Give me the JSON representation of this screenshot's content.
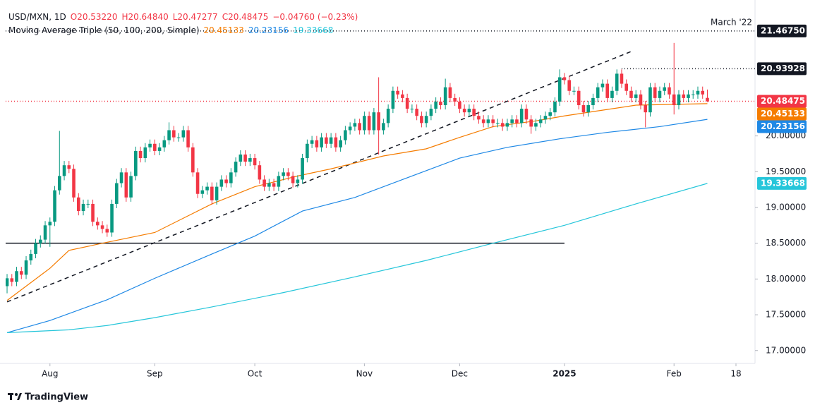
{
  "chart_data": {
    "type": "candlestick",
    "legend": [
      "USD/MXN, 1D",
      "O20.53220",
      "H20.64840",
      "L20.47277",
      "C20.48475",
      "−0.04760 (−0.23%)"
    ],
    "indicator": "Moving Average Triple (50, 100, 200, Simple)",
    "logo": "TradingView",
    "up_color": "#089981",
    "down_color": "#f23645",
    "xlim": [
      -0.3,
      157
    ],
    "ylim": [
      16.82,
      21.9
    ],
    "grid": false,
    "xticks": [
      {
        "value": 9,
        "label": "Aug"
      },
      {
        "value": 31,
        "label": "Sep"
      },
      {
        "value": 52,
        "label": "Oct"
      },
      {
        "value": 75,
        "label": "Nov"
      },
      {
        "value": 95,
        "label": "Dec"
      },
      {
        "value": 117,
        "label": "2025",
        "bold": true
      },
      {
        "value": 140,
        "label": "Feb"
      },
      {
        "value": 153,
        "label": "18"
      }
    ],
    "yticks": [
      {
        "value": 17,
        "label": "17.00000"
      },
      {
        "value": 17.5,
        "label": "17.50000"
      },
      {
        "value": 18,
        "label": "18.00000"
      },
      {
        "value": 18.5,
        "label": "18.50000"
      },
      {
        "value": 19,
        "label": "19.00000"
      },
      {
        "value": 19.5,
        "label": "19.50000"
      },
      {
        "value": 20,
        "label": "20.00000"
      }
    ],
    "open": [
      17.9,
      18.01,
      17.96,
      18.11,
      18.06,
      18.26,
      18.35,
      18.5,
      18.55,
      18.75,
      18.8,
      19.24,
      19.44,
      19.59,
      19.54,
      19.14,
      18.95,
      19.05,
      19.05,
      18.8,
      18.75,
      18.7,
      18.65,
      19.05,
      19.34,
      19.49,
      19.14,
      19.44,
      19.79,
      19.69,
      19.84,
      19.89,
      19.79,
      19.84,
      19.94,
      20.08,
      19.98,
      19.98,
      20.08,
      19.84,
      19.49,
      19.19,
      19.24,
      19.29,
      19.1,
      19.29,
      19.39,
      19.34,
      19.49,
      19.64,
      19.74,
      19.64,
      19.69,
      19.59,
      19.39,
      19.29,
      19.34,
      19.29,
      19.44,
      19.49,
      19.44,
      19.34,
      19.39,
      19.69,
      19.89,
      19.94,
      19.84,
      19.98,
      19.89,
      19.98,
      19.84,
      19.94,
      20.08,
      20.13,
      20.18,
      20.08,
      20.28,
      20.08,
      20.33,
      20.08,
      20.18,
      20.38,
      20.63,
      20.58,
      20.53,
      20.38,
      20.38,
      20.28,
      20.18,
      20.28,
      20.38,
      20.48,
      20.43,
      20.68,
      20.53,
      20.48,
      20.38,
      20.33,
      20.38,
      20.28,
      20.23,
      20.18,
      20.23,
      20.18,
      20.18,
      20.13,
      20.18,
      20.23,
      20.18,
      20.38,
      20.23,
      20.13,
      20.18,
      20.23,
      20.28,
      20.33,
      20.48,
      20.82,
      20.78,
      20.63,
      20.63,
      20.43,
      20.33,
      20.43,
      20.53,
      20.68,
      20.73,
      20.53,
      20.63,
      20.87,
      20.73,
      20.63,
      20.53,
      20.58,
      20.43,
      20.33,
      20.68,
      20.53,
      20.63,
      20.68,
      20.58,
      20.43,
      20.58,
      20.53,
      20.58,
      20.58,
      20.63,
      20.5322
    ],
    "high": [
      18.07,
      18.07,
      18.17,
      18.17,
      18.32,
      18.41,
      18.56,
      18.61,
      18.81,
      18.86,
      19.3,
      20.07,
      19.65,
      19.65,
      19.6,
      19.2,
      19.11,
      19.11,
      19.11,
      18.86,
      18.81,
      18.76,
      19.11,
      19.4,
      19.55,
      19.55,
      19.5,
      19.85,
      19.85,
      19.9,
      19.95,
      19.95,
      19.9,
      20.0,
      20.19,
      20.14,
      20.04,
      20.14,
      20.14,
      19.9,
      19.55,
      19.3,
      19.35,
      19.35,
      19.35,
      19.45,
      19.45,
      19.55,
      19.7,
      19.8,
      19.8,
      19.75,
      19.75,
      19.65,
      19.45,
      19.4,
      19.4,
      19.5,
      19.55,
      19.55,
      19.5,
      19.45,
      19.75,
      19.95,
      20.0,
      20.0,
      20.04,
      20.04,
      20.04,
      20.04,
      20.0,
      20.14,
      20.19,
      20.24,
      20.24,
      20.34,
      20.34,
      20.39,
      20.82,
      20.24,
      20.44,
      20.69,
      20.69,
      20.64,
      20.59,
      20.44,
      20.44,
      20.34,
      20.34,
      20.44,
      20.54,
      20.54,
      20.8,
      20.74,
      20.59,
      20.54,
      20.44,
      20.44,
      20.44,
      20.34,
      20.29,
      20.29,
      20.29,
      20.24,
      20.24,
      20.24,
      20.29,
      20.29,
      20.44,
      20.44,
      20.29,
      20.24,
      20.29,
      20.34,
      20.39,
      20.54,
      20.93,
      20.88,
      20.84,
      20.69,
      20.69,
      20.49,
      20.49,
      20.59,
      20.74,
      20.79,
      20.79,
      20.69,
      20.93,
      20.93,
      20.79,
      20.69,
      20.64,
      20.64,
      20.49,
      20.74,
      20.74,
      20.69,
      20.74,
      20.74,
      21.3,
      20.64,
      20.64,
      20.64,
      20.64,
      20.69,
      20.69,
      20.6484
    ],
    "low": [
      17.8,
      17.9,
      17.9,
      18.0,
      18.0,
      18.2,
      18.29,
      18.44,
      18.49,
      18.45,
      18.74,
      19.18,
      19.38,
      19.48,
      19.08,
      18.89,
      18.89,
      18.99,
      18.74,
      18.69,
      18.64,
      18.59,
      18.59,
      18.99,
      19.28,
      19.08,
      19.08,
      19.38,
      19.63,
      19.63,
      19.78,
      19.73,
      19.73,
      19.78,
      19.88,
      19.92,
      19.92,
      19.92,
      19.78,
      19.43,
      19.13,
      19.13,
      19.18,
      19.04,
      19.04,
      19.23,
      19.28,
      19.28,
      19.43,
      19.58,
      19.58,
      19.58,
      19.53,
      19.33,
      19.23,
      19.23,
      19.23,
      19.23,
      19.38,
      19.38,
      19.28,
      19.28,
      19.33,
      19.63,
      19.83,
      19.78,
      19.78,
      19.83,
      19.83,
      19.78,
      19.78,
      19.88,
      20.02,
      20.07,
      20.02,
      20.02,
      20.02,
      20.02,
      19.74,
      20.02,
      20.12,
      20.32,
      20.52,
      20.47,
      20.32,
      20.32,
      20.22,
      20.12,
      20.12,
      20.22,
      20.32,
      20.37,
      20.37,
      20.47,
      20.42,
      20.32,
      20.27,
      20.27,
      20.22,
      20.17,
      20.12,
      20.12,
      20.12,
      20.12,
      20.07,
      20.07,
      20.12,
      20.12,
      20.12,
      20.17,
      20.03,
      20.07,
      20.12,
      20.17,
      20.22,
      20.27,
      20.42,
      20.72,
      20.57,
      20.57,
      20.37,
      20.27,
      20.27,
      20.37,
      20.47,
      20.62,
      20.47,
      20.47,
      20.57,
      20.67,
      20.57,
      20.47,
      20.47,
      20.37,
      20.12,
      20.27,
      20.47,
      20.47,
      20.57,
      20.52,
      20.3,
      20.37,
      20.47,
      20.47,
      20.52,
      20.52,
      20.52,
      20.47277
    ],
    "close": [
      18.01,
      17.96,
      18.11,
      18.06,
      18.26,
      18.35,
      18.5,
      18.55,
      18.75,
      18.8,
      19.24,
      19.44,
      19.59,
      19.54,
      19.14,
      18.95,
      19.05,
      19.05,
      18.8,
      18.75,
      18.7,
      18.65,
      19.05,
      19.34,
      19.49,
      19.14,
      19.44,
      19.79,
      19.69,
      19.84,
      19.89,
      19.79,
      19.84,
      19.94,
      20.08,
      19.98,
      19.98,
      20.08,
      19.84,
      19.49,
      19.19,
      19.24,
      19.29,
      19.1,
      19.29,
      19.39,
      19.34,
      19.49,
      19.64,
      19.74,
      19.64,
      19.69,
      19.59,
      19.39,
      19.29,
      19.34,
      19.29,
      19.44,
      19.49,
      19.44,
      19.34,
      19.39,
      19.69,
      19.89,
      19.94,
      19.84,
      19.98,
      19.89,
      19.98,
      19.84,
      19.94,
      20.08,
      20.13,
      20.18,
      20.08,
      20.28,
      20.08,
      20.33,
      20.08,
      20.18,
      20.38,
      20.63,
      20.58,
      20.53,
      20.38,
      20.38,
      20.28,
      20.18,
      20.28,
      20.38,
      20.48,
      20.43,
      20.68,
      20.53,
      20.48,
      20.38,
      20.33,
      20.38,
      20.28,
      20.23,
      20.18,
      20.23,
      20.18,
      20.18,
      20.13,
      20.18,
      20.23,
      20.18,
      20.38,
      20.23,
      20.13,
      20.18,
      20.23,
      20.28,
      20.33,
      20.48,
      20.82,
      20.78,
      20.63,
      20.63,
      20.43,
      20.33,
      20.43,
      20.53,
      20.68,
      20.73,
      20.53,
      20.63,
      20.87,
      20.73,
      20.63,
      20.53,
      20.58,
      20.43,
      20.33,
      20.68,
      20.53,
      20.63,
      20.68,
      20.58,
      20.43,
      20.58,
      20.53,
      20.58,
      20.58,
      20.63,
      20.58,
      20.48475
    ],
    "series": [
      {
        "color": "#f57c00",
        "label": "20.45133",
        "x": [
          0,
          6,
          9,
          13,
          20,
          31,
          43,
          52,
          61,
          68,
          79,
          88,
          95,
          102,
          111,
          117,
          124,
          132,
          147
        ],
        "values": [
          17.7,
          18.0,
          18.15,
          18.4,
          18.5,
          18.65,
          19.05,
          19.29,
          19.44,
          19.54,
          19.72,
          19.82,
          19.98,
          20.13,
          20.21,
          20.28,
          20.35,
          20.43,
          20.45133
        ]
      },
      {
        "color": "#1e88e5",
        "label": "20.23156",
        "x": [
          0,
          9,
          21,
          31,
          43,
          52,
          62,
          73,
          83,
          95,
          105,
          116,
          126,
          137,
          147
        ],
        "values": [
          17.25,
          17.42,
          17.71,
          18.01,
          18.35,
          18.6,
          18.95,
          19.14,
          19.39,
          19.69,
          19.84,
          19.96,
          20.05,
          20.13,
          20.23156
        ]
      },
      {
        "color": "#26c6da",
        "label": "19.33668",
        "x": [
          0,
          13,
          21,
          31,
          43,
          58,
          73,
          88,
          102,
          117,
          132,
          147
        ],
        "values": [
          17.25,
          17.29,
          17.35,
          17.46,
          17.61,
          17.81,
          18.03,
          18.26,
          18.5,
          18.75,
          19.05,
          19.33668
        ]
      }
    ],
    "levels": [
      {
        "value": 21.4675,
        "label": "21.46750",
        "color": "#131722",
        "style": "dotted",
        "x": [
          -0.3,
          157
        ],
        "note": "March '22"
      },
      {
        "value": 20.93928,
        "label": "20.93928",
        "color": "#131722",
        "style": "dotted",
        "x": [
          129,
          157
        ]
      },
      {
        "value": 20.48475,
        "label": "20.48475",
        "color": "#f23645",
        "style": "dotted",
        "x": [
          -0.3,
          157
        ]
      },
      {
        "value": 18.5,
        "color": "#131722",
        "style": "solid",
        "x": [
          -0.3,
          117
        ]
      }
    ],
    "trendline": {
      "x": [
        0,
        131
      ],
      "values": [
        17.68,
        21.18
      ],
      "color": "#131722",
      "style": "dashed"
    }
  }
}
